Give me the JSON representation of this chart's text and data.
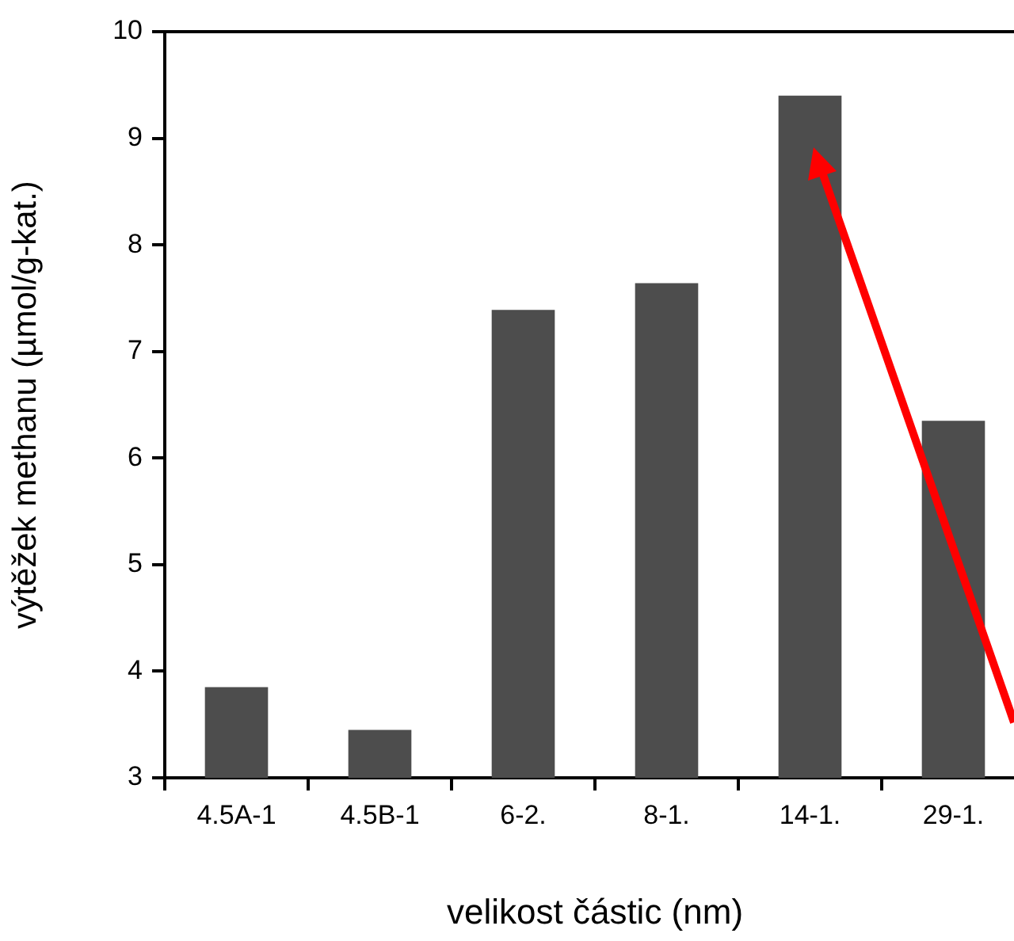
{
  "chart_data": {
    "type": "bar",
    "categories": [
      "4.5A-1",
      "4.5B-1",
      "6-2.",
      "8-1.",
      "14-1.",
      "29-1."
    ],
    "values": [
      3.85,
      3.45,
      7.39,
      7.64,
      9.4,
      6.35
    ],
    "color": "#4d4d4d",
    "xlabel": "velikost částic (nm)",
    "ylabel": "výtěžek methanu (µmol/g-kat.)",
    "ylim": [
      3,
      10
    ],
    "yticks": [
      3,
      4,
      5,
      6,
      7,
      8,
      9,
      10
    ]
  }
}
